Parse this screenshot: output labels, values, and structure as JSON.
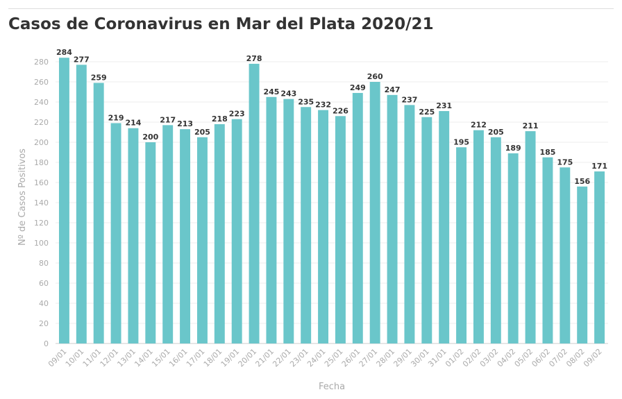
{
  "chart_data": {
    "type": "bar",
    "title": "Casos de Coronavirus en Mar del Plata 2020/21",
    "xlabel": "Fecha",
    "ylabel": "Nº de Casos Positivos",
    "ylim": [
      0,
      280
    ],
    "yticks": [
      0,
      20,
      40,
      60,
      80,
      100,
      120,
      140,
      160,
      180,
      200,
      220,
      240,
      260,
      280
    ],
    "grid": true,
    "bar_color": "#6ac6ca",
    "categories": [
      "09/01",
      "10/01",
      "11/01",
      "12/01",
      "13/01",
      "14/01",
      "15/01",
      "16/01",
      "17/01",
      "18/01",
      "19/01",
      "20/01",
      "21/01",
      "22/01",
      "23/01",
      "24/01",
      "25/01",
      "26/01",
      "27/01",
      "28/01",
      "29/01",
      "30/01",
      "31/01",
      "01/02",
      "02/02",
      "03/02",
      "04/02",
      "05/02",
      "06/02",
      "07/02",
      "08/02",
      "09/02"
    ],
    "values": [
      284,
      277,
      259,
      219,
      214,
      200,
      217,
      213,
      205,
      218,
      223,
      278,
      245,
      243,
      235,
      232,
      226,
      249,
      260,
      247,
      237,
      225,
      231,
      195,
      212,
      205,
      189,
      211,
      185,
      175,
      156,
      171
    ]
  }
}
